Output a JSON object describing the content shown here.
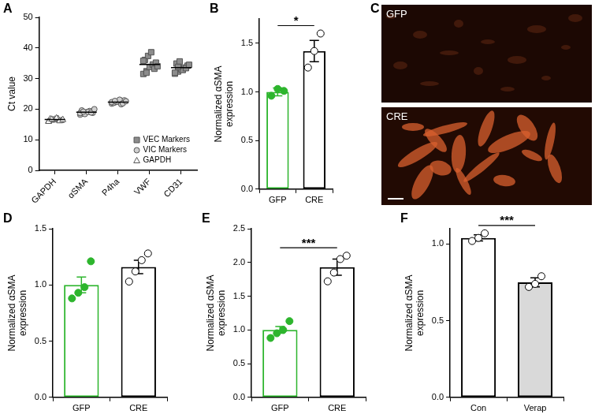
{
  "chart_data": [
    {
      "panel": "A",
      "type": "scatter",
      "ylabel": "Ct value",
      "categories": [
        "GAPDH",
        "αSMA",
        "P4ha",
        "VWF",
        "CD31"
      ],
      "ylim": [
        0,
        50
      ],
      "yticks": [
        0,
        10,
        20,
        30,
        40,
        50
      ],
      "grid": false,
      "legend": "lower right",
      "series": [
        {
          "name": "VEC Markers",
          "marker": "square",
          "color": "#8c8c8c",
          "x": [
            "VWF",
            "VWF",
            "VWF",
            "VWF",
            "VWF",
            "VWF",
            "VWF",
            "VWF",
            "VWF",
            "VWF",
            "VWF",
            "VWF",
            "CD31",
            "CD31",
            "CD31",
            "CD31",
            "CD31",
            "CD31",
            "CD31",
            "CD31",
            "CD31",
            "CD31",
            "CD31",
            "CD31"
          ],
          "values": [
            31.5,
            32.4,
            33.8,
            34.6,
            35.2,
            36.1,
            37.4,
            38.6,
            33.2,
            34.0,
            35.8,
            31.9,
            31.6,
            32.3,
            33.0,
            33.6,
            34.2,
            34.9,
            35.6,
            32.8,
            33.4,
            34.5,
            31.9,
            33.8
          ]
        },
        {
          "name": "VIC Markers",
          "marker": "circle",
          "color": "#cfcfcf",
          "x": [
            "αSMA",
            "αSMA",
            "αSMA",
            "αSMA",
            "αSMA",
            "αSMA",
            "αSMA",
            "αSMA",
            "αSMA",
            "αSMA",
            "αSMA",
            "αSMA",
            "P4ha",
            "P4ha",
            "P4ha",
            "P4ha",
            "P4ha",
            "P4ha",
            "P4ha",
            "P4ha",
            "P4ha",
            "P4ha",
            "P4ha",
            "P4ha"
          ],
          "values": [
            18.2,
            18.6,
            19.0,
            19.4,
            18.8,
            19.6,
            18.4,
            19.1,
            18.9,
            20.0,
            18.7,
            19.2,
            21.8,
            22.2,
            22.5,
            21.6,
            22.9,
            22.0,
            22.4,
            23.1,
            21.9,
            22.6,
            22.3,
            22.7
          ]
        },
        {
          "name": "GAPDH",
          "marker": "triangle",
          "color": "#ffffff",
          "x": [
            "GAPDH",
            "GAPDH",
            "GAPDH",
            "GAPDH",
            "GAPDH",
            "GAPDH",
            "GAPDH",
            "GAPDH",
            "GAPDH",
            "GAPDH",
            "GAPDH",
            "GAPDH"
          ],
          "values": [
            16.2,
            16.5,
            16.8,
            17.0,
            16.4,
            16.9,
            16.6,
            17.2,
            16.3,
            16.7,
            16.1,
            16.8
          ]
        }
      ],
      "means": [
        16.6,
        19.0,
        22.3,
        34.6,
        33.6
      ]
    },
    {
      "panel": "B",
      "type": "bar",
      "ylabel": [
        "Normalized αSMA",
        "expression"
      ],
      "categories": [
        "GFP",
        "CRE"
      ],
      "values": [
        1.0,
        1.42
      ],
      "errors": [
        0.04,
        0.11
      ],
      "points": [
        [
          0.96,
          1.03,
          1.01
        ],
        [
          1.25,
          1.42,
          1.6
        ]
      ],
      "colors": [
        "#2db52d",
        "#000000"
      ],
      "fill_colors": [
        "#ffffff",
        "#ffffff"
      ],
      "markers": [
        "filled",
        "open"
      ],
      "ylim": [
        0,
        1.75
      ],
      "yticks": [
        {
          "value": 0,
          "label": "0.0"
        },
        {
          "value": 0.5,
          "label": "0.5"
        },
        {
          "value": 1,
          "label": "1.0"
        },
        {
          "value": 1.5,
          "label": "1.5"
        }
      ],
      "grid": false,
      "annotations": [
        {
          "text": "*",
          "from": "GFP",
          "to": "CRE"
        }
      ]
    },
    {
      "panel": "C",
      "type": "image",
      "labels": [
        "GFP",
        "CRE"
      ]
    },
    {
      "panel": "D",
      "type": "bar",
      "ylabel": [
        "Normalized αSMA",
        "expression"
      ],
      "categories": [
        "GFP",
        "CRE"
      ],
      "values": [
        1.0,
        1.16
      ],
      "errors": [
        0.07,
        0.06
      ],
      "points": [
        [
          0.88,
          0.93,
          0.98,
          1.21
        ],
        [
          1.03,
          1.12,
          1.22,
          1.28
        ]
      ],
      "colors": [
        "#2db52d",
        "#000000"
      ],
      "fill_colors": [
        "#ffffff",
        "#ffffff"
      ],
      "markers": [
        "filled",
        "open"
      ],
      "ylim": [
        0,
        1.5
      ],
      "yticks": [
        {
          "value": 0,
          "label": "0.0"
        },
        {
          "value": 0.5,
          "label": "0.5"
        },
        {
          "value": 1,
          "label": "1.0"
        },
        {
          "value": 1.5,
          "label": "1.5"
        }
      ],
      "grid": false
    },
    {
      "panel": "E",
      "type": "bar",
      "ylabel": [
        "Normalized αSMA",
        "expression"
      ],
      "categories": [
        "GFP",
        "CRE"
      ],
      "values": [
        1.0,
        1.93
      ],
      "errors": [
        0.05,
        0.12
      ],
      "points": [
        [
          0.88,
          0.95,
          1.0,
          1.13
        ],
        [
          1.72,
          1.85,
          2.05,
          2.1
        ]
      ],
      "colors": [
        "#2db52d",
        "#000000"
      ],
      "fill_colors": [
        "#ffffff",
        "#ffffff"
      ],
      "markers": [
        "filled",
        "open"
      ],
      "ylim": [
        0,
        2.5
      ],
      "yticks": [
        {
          "value": 0,
          "label": "0.0"
        },
        {
          "value": 0.5,
          "label": "0.5"
        },
        {
          "value": 1,
          "label": "1.0"
        },
        {
          "value": 1.5,
          "label": "1.5"
        },
        {
          "value": 2,
          "label": "2.0"
        },
        {
          "value": 2.5,
          "label": "2.5"
        }
      ],
      "grid": false,
      "annotations": [
        {
          "text": "***",
          "from": "GFP",
          "to": "CRE"
        }
      ]
    },
    {
      "panel": "F",
      "type": "bar",
      "ylabel": [
        "Normalized αSMA",
        "expression"
      ],
      "categories": [
        "Con",
        "Verap"
      ],
      "values": [
        1.04,
        0.75
      ],
      "errors": [
        0.02,
        0.03
      ],
      "points": [
        [
          1.02,
          1.04,
          1.07
        ],
        [
          0.72,
          0.74,
          0.79
        ]
      ],
      "colors": [
        "#000000",
        "#000000"
      ],
      "fill_colors": [
        "#ffffff",
        "#d9d9d9"
      ],
      "markers": [
        "open",
        "open"
      ],
      "ylim": [
        0,
        1.1
      ],
      "yticks": [
        {
          "value": 0,
          "label": "0.0"
        },
        {
          "value": 0.5,
          "label": "0.5"
        },
        {
          "value": 1,
          "label": "1.0"
        }
      ],
      "grid": false,
      "annotations": [
        {
          "text": "***",
          "from": "Con",
          "to": "Verap"
        }
      ]
    }
  ]
}
